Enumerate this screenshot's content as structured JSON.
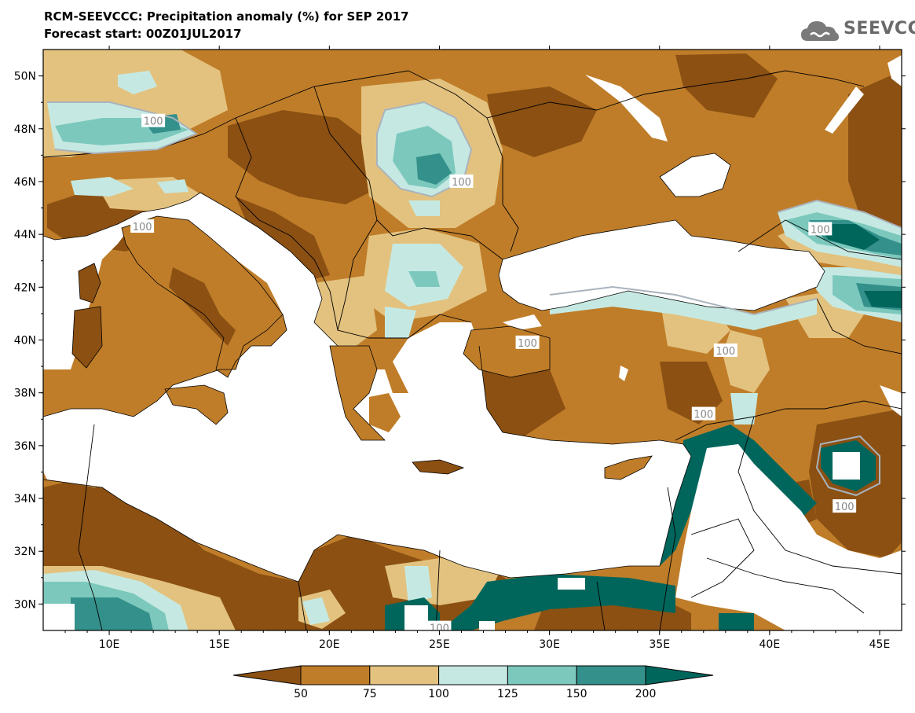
{
  "title": {
    "line1": "RCM-SEEVCCC: Precipitation anomaly (%) for SEP 2017",
    "line2": "Forecast start: 00Z01JUL2017"
  },
  "logo": {
    "text": "SEEVCCC",
    "icon": "cloud-icon"
  },
  "map": {
    "lon_range": [
      7,
      46
    ],
    "lat_range": [
      29,
      51
    ],
    "lat_ticks": [
      "50N",
      "48N",
      "46N",
      "44N",
      "42N",
      "40N",
      "38N",
      "36N",
      "34N",
      "32N",
      "30N"
    ],
    "lon_ticks": [
      "10E",
      "15E",
      "20E",
      "25E",
      "30E",
      "35E",
      "40E",
      "45E"
    ],
    "contour_labels": [
      {
        "text": "100",
        "lon": 12.0,
        "lat": 48.3
      },
      {
        "text": "100",
        "lon": 26.0,
        "lat": 46.0
      },
      {
        "text": "100",
        "lon": 11.5,
        "lat": 44.3
      },
      {
        "text": "100",
        "lon": 42.3,
        "lat": 44.2
      },
      {
        "text": "100",
        "lon": 29.0,
        "lat": 39.9
      },
      {
        "text": "100",
        "lon": 38.0,
        "lat": 39.6
      },
      {
        "text": "100",
        "lon": 37.0,
        "lat": 37.2
      },
      {
        "text": "100",
        "lon": 43.4,
        "lat": 33.7
      },
      {
        "text": "100",
        "lon": 25.0,
        "lat": 29.1
      }
    ]
  },
  "colorbar": {
    "labels": [
      "50",
      "75",
      "100",
      "125",
      "150",
      "200"
    ],
    "colors": [
      "#8b5012",
      "#bf7d29",
      "#e3c27f",
      "#c5e9e2",
      "#7cc8bd",
      "#34908a",
      "#00665c"
    ]
  },
  "colors": {
    "sea": "#ffffff",
    "base_land": "#bf7d29"
  }
}
